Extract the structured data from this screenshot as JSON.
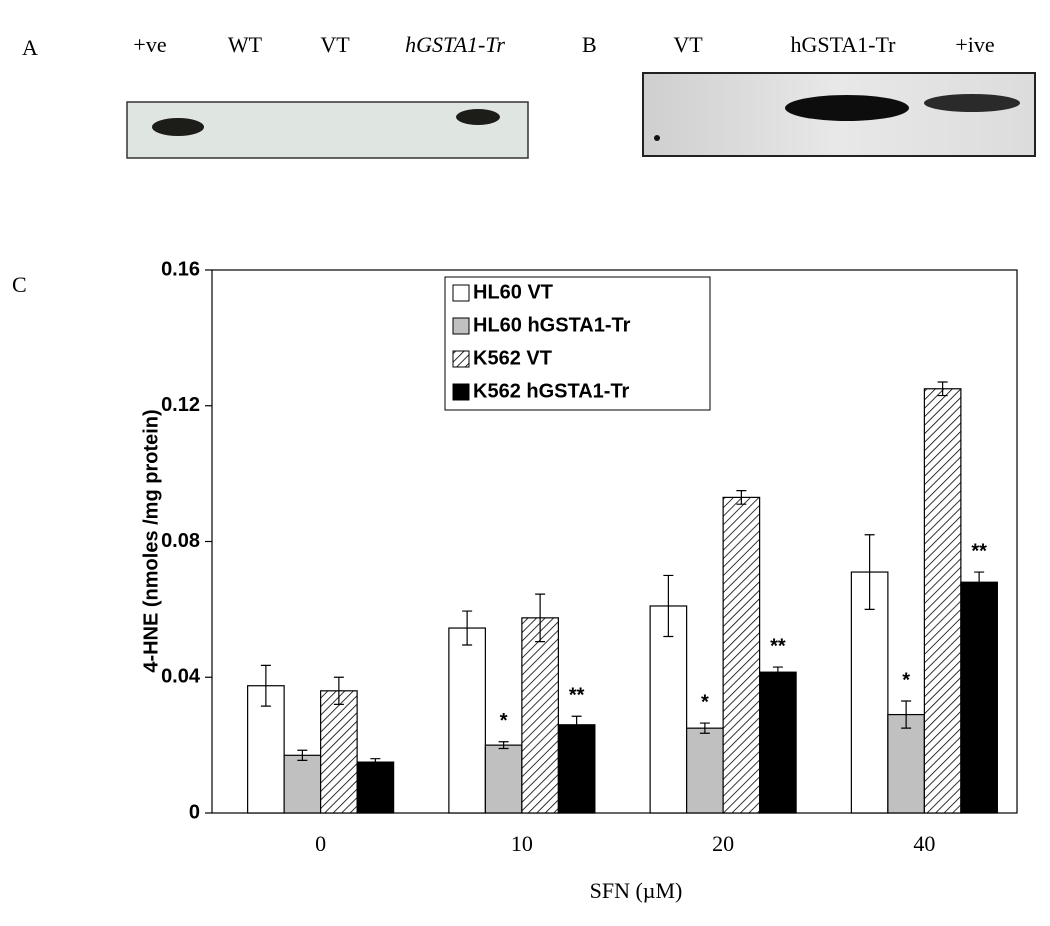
{
  "panels": {
    "A": {
      "label": "A",
      "lanes": [
        "+ve",
        "WT",
        "VT",
        "hGSTA1-Tr"
      ]
    },
    "B": {
      "label": "B",
      "lanes": [
        "VT",
        "hGSTA1-Tr",
        "+ive"
      ]
    },
    "C": {
      "label": "C"
    }
  },
  "chart_data": {
    "type": "bar",
    "ylabel": "4-HNE (nmoles /mg protein)",
    "xlabel": "SFN (µM)",
    "categories": [
      "0",
      "10",
      "20",
      "40"
    ],
    "ylim": [
      0,
      0.16
    ],
    "yticks": [
      0,
      0.04,
      0.08,
      0.12,
      0.16
    ],
    "legend": "top",
    "series": [
      {
        "name": "HL60 VT",
        "color": "#ffffff",
        "values": [
          0.0375,
          0.0545,
          0.061,
          0.071
        ],
        "errors": [
          0.006,
          0.005,
          0.009,
          0.011
        ]
      },
      {
        "name": "HL60 hGSTA1-Tr",
        "color": "#c0c0c0",
        "values": [
          0.017,
          0.02,
          0.025,
          0.029
        ],
        "errors": [
          0.0015,
          0.001,
          0.0015,
          0.004
        ],
        "significance": [
          null,
          "*",
          "*",
          "*"
        ]
      },
      {
        "name": "K562 VT",
        "color": "#ffffff",
        "pattern": "hatch",
        "values": [
          0.036,
          0.0575,
          0.093,
          0.125
        ],
        "errors": [
          0.004,
          0.007,
          0.002,
          0.002
        ]
      },
      {
        "name": "K562 hGSTA1-Tr",
        "color": "#000000",
        "values": [
          0.015,
          0.026,
          0.0415,
          0.068
        ],
        "errors": [
          0.001,
          0.0025,
          0.0015,
          0.003
        ],
        "significance": [
          null,
          "**",
          "**",
          "**"
        ]
      }
    ]
  }
}
